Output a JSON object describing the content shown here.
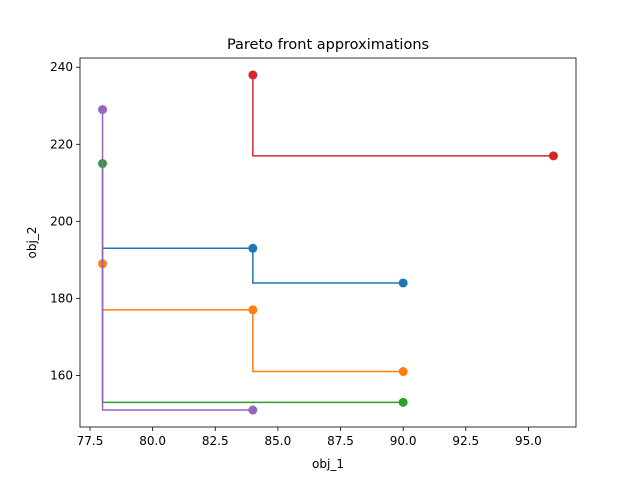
{
  "chart_data": {
    "type": "line",
    "title": "Pareto front approximations",
    "xlabel": "obj_1",
    "ylabel": "obj_2",
    "xlim": [
      77.1,
      96.9
    ],
    "ylim": [
      146.6,
      242.4
    ],
    "xticks": [
      77.5,
      80.0,
      82.5,
      85.0,
      87.5,
      90.0,
      92.5,
      95.0
    ],
    "xtick_labels": [
      "77.5",
      "80.0",
      "82.5",
      "85.0",
      "87.5",
      "90.0",
      "92.5",
      "95.0"
    ],
    "yticks": [
      160,
      180,
      200,
      220,
      240
    ],
    "ytick_labels": [
      "160",
      "180",
      "200",
      "220",
      "240"
    ],
    "grid": false,
    "legend": false,
    "step_style": "post",
    "series": [
      {
        "color": "#1f77b4",
        "points": [
          [
            78,
            193
          ],
          [
            84,
            193
          ],
          [
            84,
            184
          ],
          [
            90,
            184
          ]
        ],
        "markers": [
          [
            84,
            193
          ],
          [
            90,
            184
          ]
        ]
      },
      {
        "color": "#ff7f0e",
        "points": [
          [
            78,
            189
          ],
          [
            78,
            177
          ],
          [
            84,
            177
          ],
          [
            84,
            161
          ],
          [
            90,
            161
          ]
        ],
        "markers": [
          [
            78,
            189
          ],
          [
            84,
            177
          ],
          [
            90,
            161
          ]
        ]
      },
      {
        "color": "#2ca02c",
        "points": [
          [
            78,
            215
          ],
          [
            78,
            153
          ],
          [
            90,
            153
          ]
        ],
        "markers": [
          [
            78,
            215
          ],
          [
            90,
            153
          ]
        ]
      },
      {
        "color": "#d62728",
        "points": [
          [
            84,
            238
          ],
          [
            84,
            217
          ],
          [
            96,
            217
          ]
        ],
        "markers": [
          [
            84,
            238
          ],
          [
            96,
            217
          ]
        ]
      },
      {
        "color": "#9467bd",
        "points": [
          [
            78,
            229
          ],
          [
            78,
            151
          ],
          [
            84,
            151
          ]
        ],
        "markers": [
          [
            78,
            229
          ],
          [
            84,
            151
          ]
        ]
      }
    ]
  }
}
